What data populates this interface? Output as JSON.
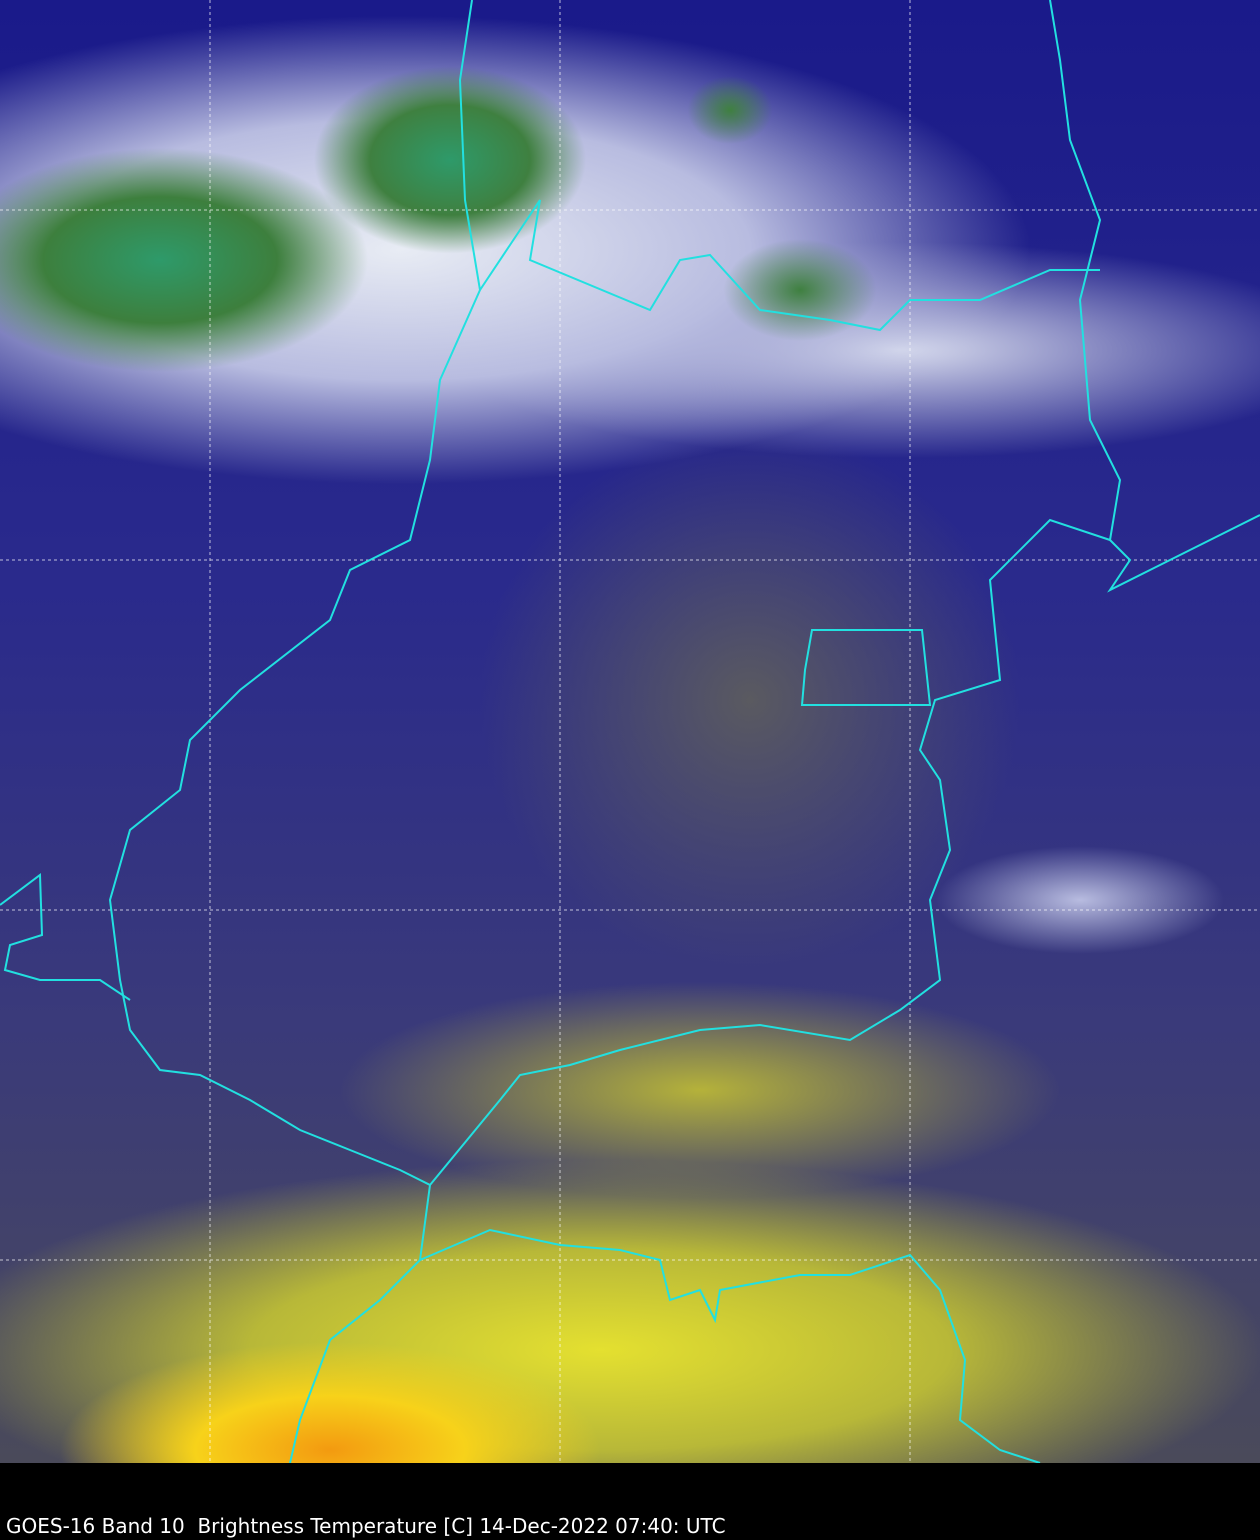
{
  "caption": "GOES-16 Band 10  Brightness Temperature [C] 14-Dec-2022 07:40: UTC",
  "colors": {
    "border": "#22e0e0",
    "gridline": "#ffffff",
    "background": "#000000"
  }
}
